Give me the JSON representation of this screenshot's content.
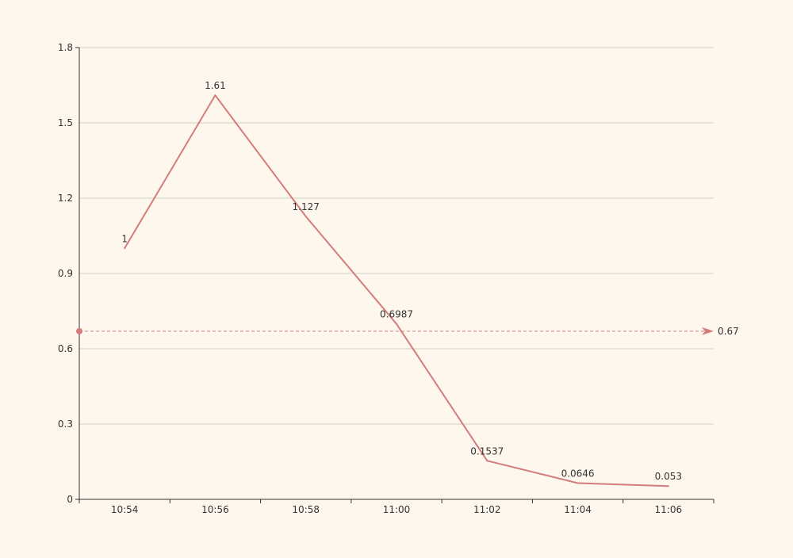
{
  "chart_data": {
    "type": "line",
    "title": "",
    "xlabel": "",
    "ylabel": "",
    "categories": [
      "10:54",
      "10:56",
      "10:58",
      "11:00",
      "11:02",
      "11:04",
      "11:06"
    ],
    "series": [
      {
        "values": [
          1,
          1.61,
          1.127,
          0.6987,
          0.1537,
          0.0646,
          0.053
        ]
      }
    ],
    "data_labels": [
      "1",
      "1.61",
      "1.127",
      "0.6987",
      "0.1537",
      "0.0646",
      "0.053"
    ],
    "ylim": [
      0,
      1.8
    ],
    "y_ticks": [
      "0",
      "0.3",
      "0.6",
      "0.9",
      "1.2",
      "1.5",
      "1.8"
    ],
    "y_tick_values": [
      0,
      0.3,
      0.6,
      0.9,
      1.2,
      1.5,
      1.8
    ],
    "grid": "horizontal",
    "reference_line": {
      "value": 0.67,
      "label": "0.67"
    },
    "colors": {
      "series": "#d47c7c",
      "background": "#fef7ee",
      "grid": "#cfcfc4",
      "axis": "#333333"
    }
  }
}
